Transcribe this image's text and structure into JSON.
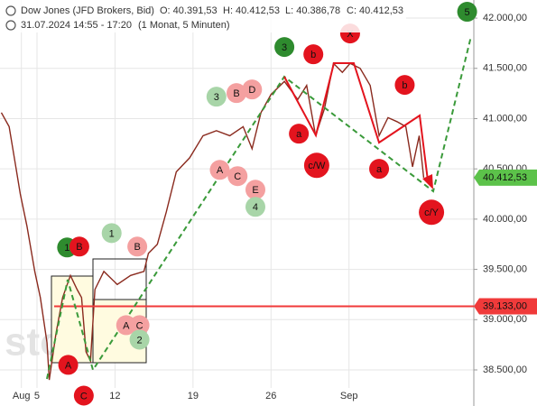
{
  "chart_data": {
    "type": "line",
    "title": "Dow Jones (JFD Brokers, Bid)",
    "ohlc": [
      "O: 40.391,53",
      "H: 40.412,53",
      "L: 40.386,78",
      "C: 40.412,53"
    ],
    "subtitle": "31.07.2024 14:55 - 17:20",
    "period": "(1 Monat, 5 Minuten)",
    "watermark": "stock3",
    "color": "#8a2a1e",
    "x": [
      1.8,
      2.5,
      3.1,
      3.5,
      4.1,
      4.8,
      5.3,
      5.9,
      6.1,
      6.7,
      7.3,
      8.0,
      8.6,
      9.0,
      9.4,
      9.8,
      10.2,
      11.0,
      12.2,
      13.4,
      14.6,
      15.0,
      15.8,
      16.6,
      17.5,
      18.7,
      19.9,
      21.1,
      22.3,
      23.5,
      24.3,
      25.1,
      26.0,
      27.2,
      28.4,
      29.2,
      30.0,
      30.8,
      31.6,
      32.4,
      33.1,
      34.0,
      34.9,
      35.7,
      36.5,
      37.3,
      38.1,
      38.7,
      39.3,
      39.7
    ],
    "values": [
      41060,
      40920,
      40520,
      40250,
      39930,
      39480,
      39220,
      38770,
      38400,
      38860,
      39220,
      39440,
      39300,
      39220,
      38680,
      38590,
      39300,
      39480,
      39350,
      39440,
      39480,
      39660,
      39750,
      40070,
      40470,
      40610,
      40830,
      40880,
      40830,
      40920,
      40700,
      41060,
      41240,
      41370,
      41190,
      41330,
      40830,
      41100,
      41550,
      41460,
      41550,
      41500,
      41330,
      40830,
      41010,
      40970,
      40920,
      40520,
      40830,
      40412.53
    ],
    "xlim": [
      1.68,
      44.2
    ],
    "ylim": [
      38141,
      42180
    ],
    "xticks": [
      {
        "value": 3.6,
        "label": "Aug"
      },
      5,
      12,
      19,
      26,
      {
        "value": 33,
        "label": "Sep"
      }
    ],
    "yticks": [
      {
        "value": 38500,
        "label": "38.500,00"
      },
      {
        "value": 39000,
        "label": "39.000,00"
      },
      {
        "value": 39500,
        "label": "39.500,00"
      },
      {
        "value": 40000,
        "label": "40.000,00"
      },
      {
        "value": 40500,
        "label": "40.500,00"
      },
      {
        "value": 41000,
        "label": "41.000,00"
      },
      {
        "value": 41500,
        "label": "41.500,00"
      },
      {
        "value": 42000,
        "label": "42.000,00"
      }
    ],
    "grid": true,
    "price_lines": [
      {
        "value": 39133,
        "label": "39.133,00",
        "color": "#f03a3a"
      },
      {
        "value": 40412.53,
        "label": "40.412,53",
        "color": "#5cc24a"
      }
    ],
    "annotations": [
      {
        "text": "5",
        "x": 43.6,
        "y": 42063,
        "color": "#2e8b2e"
      },
      {
        "text": "X",
        "x": 33.1,
        "y": 41847,
        "color": "#e3141e"
      },
      {
        "text": "3",
        "x": 27.2,
        "y": 41712,
        "color": "#2e8b2e"
      },
      {
        "text": "b",
        "x": 29.8,
        "y": 41640,
        "color": "#e3141e"
      },
      {
        "text": "3",
        "x": 21.1,
        "y": 41218,
        "color": "#a8d5a8"
      },
      {
        "text": "B",
        "x": 22.9,
        "y": 41254,
        "color": "#f4a0a0"
      },
      {
        "text": "D",
        "x": 24.3,
        "y": 41290,
        "color": "#f4a0a0"
      },
      {
        "text": "b",
        "x": 38.0,
        "y": 41335,
        "color": "#e3141e"
      },
      {
        "text": "a",
        "x": 28.5,
        "y": 40850,
        "color": "#e3141e"
      },
      {
        "text": "c/W",
        "x": 30.1,
        "y": 40535,
        "color": "#e3141e"
      },
      {
        "text": "a",
        "x": 35.7,
        "y": 40500,
        "color": "#e3141e"
      },
      {
        "text": "A",
        "x": 21.4,
        "y": 40490,
        "color": "#f4a0a0"
      },
      {
        "text": "C",
        "x": 23.0,
        "y": 40428,
        "color": "#f4a0a0"
      },
      {
        "text": "E",
        "x": 24.6,
        "y": 40293,
        "color": "#f4a0a0"
      },
      {
        "text": "4",
        "x": 24.6,
        "y": 40122,
        "color": "#a8d5a8"
      },
      {
        "text": "c/Y",
        "x": 40.4,
        "y": 40068,
        "color": "#e3141e"
      },
      {
        "text": "1",
        "x": 11.7,
        "y": 39861,
        "color": "#a8d5a8"
      },
      {
        "text": "B",
        "x": 14.0,
        "y": 39727,
        "color": "#f4a0a0"
      },
      {
        "text": "1",
        "x": 7.7,
        "y": 39718,
        "color": "#2e8b2e"
      },
      {
        "text": "B",
        "x": 8.8,
        "y": 39727,
        "color": "#e3141e"
      },
      {
        "text": "A",
        "x": 13.0,
        "y": 38945,
        "color": "#f4a0a0"
      },
      {
        "text": "C",
        "x": 14.2,
        "y": 38945,
        "color": "#f4a0a0"
      },
      {
        "text": "2",
        "x": 14.2,
        "y": 38801,
        "color": "#a8d5a8"
      },
      {
        "text": "A",
        "x": 7.8,
        "y": 38550,
        "color": "#e3141e"
      },
      {
        "text": "C",
        "x": 9.2,
        "y": 38244,
        "color": "#e3141e"
      }
    ]
  }
}
